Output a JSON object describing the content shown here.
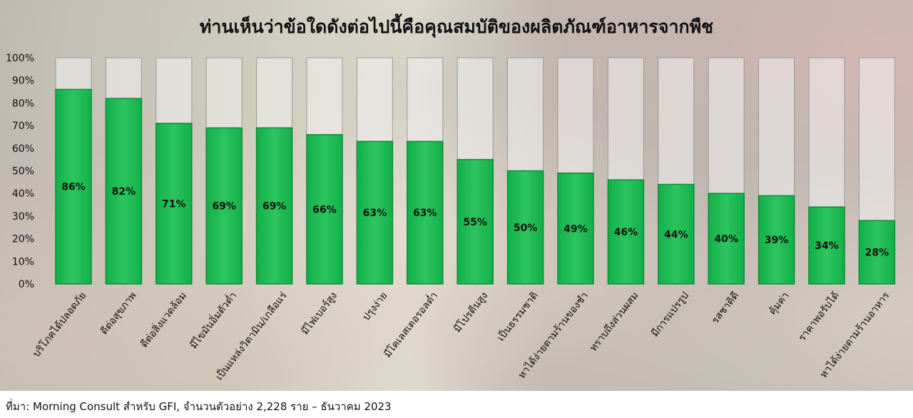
{
  "chart_data": {
    "type": "bar",
    "title": "ท่านเห็นว่าข้อใดดังต่อไปนี้คือคุณสมบัติของผลิตภัณฑ์อาหารจากพืช",
    "categories": [
      "บริโภคได้ปลอดภัย",
      "ดีต่อสุขภาพ",
      "ดีต่อสิ่งแวดล้อม",
      "มีไขมันอิ่มตัวต่ำ",
      "เป็นแหล่งวิตามิน/เกลือแร่",
      "มีไฟเบอร์สูง",
      "ปรุงง่าย",
      "มีโคเลสเตอรอลต่ำ",
      "มีโปรตีนสูง",
      "เป็นธรรมชาติ",
      "หาได้ง่ายตามร้านของชำ",
      "ทราบถึงส่วนผสม",
      "มีการแปรรูป",
      "รสชาติดี",
      "คุ้มค่า",
      "ราคาพอรับได้",
      "หาได้ง่ายตามร้านอาหาร"
    ],
    "values": [
      86,
      82,
      71,
      69,
      69,
      66,
      63,
      63,
      55,
      50,
      49,
      46,
      44,
      40,
      39,
      34,
      28
    ],
    "data_labels": [
      "86%",
      "82%",
      "71%",
      "69%",
      "69%",
      "66%",
      "63%",
      "63%",
      "55%",
      "50%",
      "49%",
      "46%",
      "44%",
      "40%",
      "39%",
      "34%",
      "28%"
    ],
    "yticks": [
      "0%",
      "10%",
      "20%",
      "30%",
      "40%",
      "50%",
      "60%",
      "70%",
      "80%",
      "90%",
      "100%"
    ],
    "ylim": [
      0,
      100
    ],
    "xlabel": "",
    "ylabel": "",
    "grid": false,
    "legend": "none"
  },
  "source": "ที่มา: Morning Consult สำหรับ GFI, จำนวนตัวอย่าง 2,228 ราย – ธันวาคม 2023",
  "colors": {
    "bar_fill": "#12b04a",
    "bar_fill_light": "#2cc45e",
    "bar_border": "#0e8a3a",
    "track_fill": "#f3f3f3",
    "track_border": "#9a9a9a",
    "text": "#111111"
  }
}
